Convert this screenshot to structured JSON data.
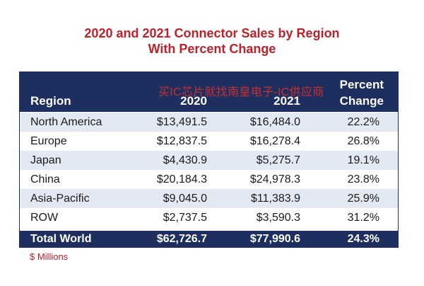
{
  "title": {
    "line1": "2020 and 2021 Connector Sales by Region",
    "line2": "With Percent Change"
  },
  "header": {
    "region": "Region",
    "y2020": "2020",
    "y2021": "2021",
    "pct_line1": "Percent",
    "pct_line2": "Change"
  },
  "watermark": "买IC芯片就找南皇电子-IC供应商",
  "rows": [
    {
      "region": "North America",
      "v2020": "$13,491.5",
      "v2021": "$16,484.0",
      "pct": "22.2%"
    },
    {
      "region": "Europe",
      "v2020": "$12,837.5",
      "v2021": "$16,278.4",
      "pct": "26.8%"
    },
    {
      "region": "Japan",
      "v2020": "$4,430.9",
      "v2021": "$5,275.7",
      "pct": "19.1%"
    },
    {
      "region": "China",
      "v2020": "$20,184.3",
      "v2021": "$24,978.3",
      "pct": "23.8%"
    },
    {
      "region": "Asia-Pacific",
      "v2020": "$9,045.0",
      "v2021": "$11,383.9",
      "pct": "25.9%"
    },
    {
      "region": "ROW",
      "v2020": "$2,737.5",
      "v2021": "$3,590.3",
      "pct": "31.2%"
    }
  ],
  "total": {
    "region": "Total World",
    "v2020": "$62,726.7",
    "v2021": "$77,990.6",
    "pct": "24.3%"
  },
  "footnote": "$ Millions",
  "colors": {
    "header_bg": "#1e2f5f",
    "title": "#c0202a",
    "alt_row": "#e3e9f3"
  }
}
